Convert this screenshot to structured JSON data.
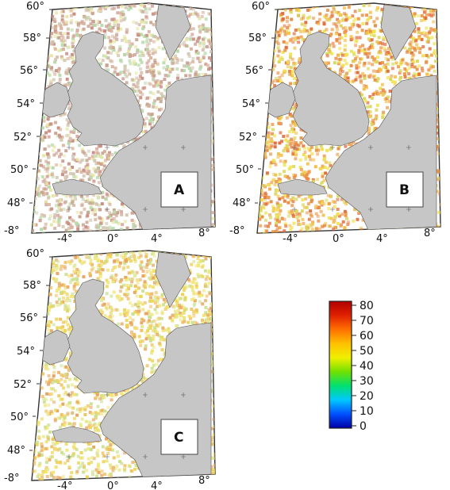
{
  "maps": [
    {
      "id": "A",
      "label": "A",
      "palette": [
        "#d2c8b4",
        "#c9a38f",
        "#d9b49e",
        "#e8e6a6",
        "#b5d9a8",
        "#c98e82"
      ]
    },
    {
      "id": "B",
      "label": "B",
      "palette": [
        "#e79046",
        "#ef9b4d",
        "#f3c04c",
        "#f0e24a",
        "#e06e3e",
        "#d9d75a"
      ]
    },
    {
      "id": "C",
      "label": "C",
      "palette": [
        "#f3e36a",
        "#ecd457",
        "#e9e88b",
        "#c9e08c",
        "#e8a560",
        "#f0c061"
      ]
    }
  ],
  "lat_labels": [
    "60°",
    "58°",
    "56°",
    "54°",
    "52°",
    "50°",
    "48°"
  ],
  "lon_labels": [
    "-8°",
    "-4°",
    "0°",
    "4°",
    "8°"
  ],
  "colorbar": {
    "ticks": [
      "80",
      "70",
      "60",
      "50",
      "40",
      "30",
      "20",
      "10",
      "0"
    ],
    "min": 0,
    "max": 80,
    "colors": [
      "#0000a8",
      "#0050ff",
      "#00c8ff",
      "#00e070",
      "#70e000",
      "#f0f000",
      "#ffc000",
      "#ff7000",
      "#e02000",
      "#b00000"
    ]
  }
}
